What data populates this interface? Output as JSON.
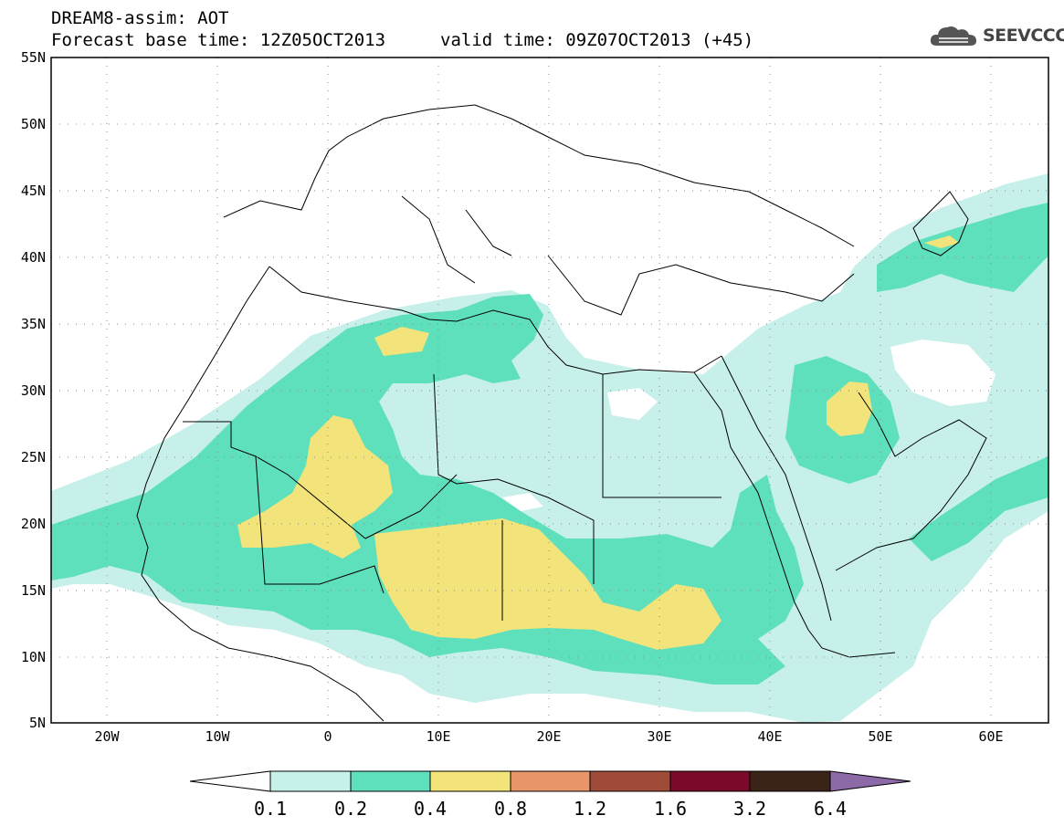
{
  "header": {
    "title": "DREAM8-assim: AOT",
    "base_time": "Forecast base time: 12Z05OCT2013",
    "valid_time": "valid time: 09Z07OCT2013 (+45)"
  },
  "logo": {
    "text": "SEEVCCC",
    "icon": "cloud-icon"
  },
  "map": {
    "projection": "lat-lon",
    "lon_range": [
      -25,
      65
    ],
    "lat_range": [
      5,
      55
    ],
    "lat_labels": [
      "55N",
      "50N",
      "45N",
      "40N",
      "35N",
      "30N",
      "25N",
      "20N",
      "15N",
      "10N",
      "5N"
    ],
    "lon_labels": [
      "20W",
      "10W",
      "0",
      "10E",
      "20E",
      "30E",
      "40E",
      "50E",
      "60E"
    ]
  },
  "colorbar": {
    "levels": [
      "0.1",
      "0.2",
      "0.4",
      "0.8",
      "1.2",
      "1.6",
      "3.2",
      "6.4"
    ],
    "colors": [
      "#ffffff",
      "#c8f0ea",
      "#5fe0bc",
      "#f2e37a",
      "#e8956a",
      "#a04a3a",
      "#7a0a2a",
      "#3a2418",
      "#8c6aa8"
    ]
  }
}
